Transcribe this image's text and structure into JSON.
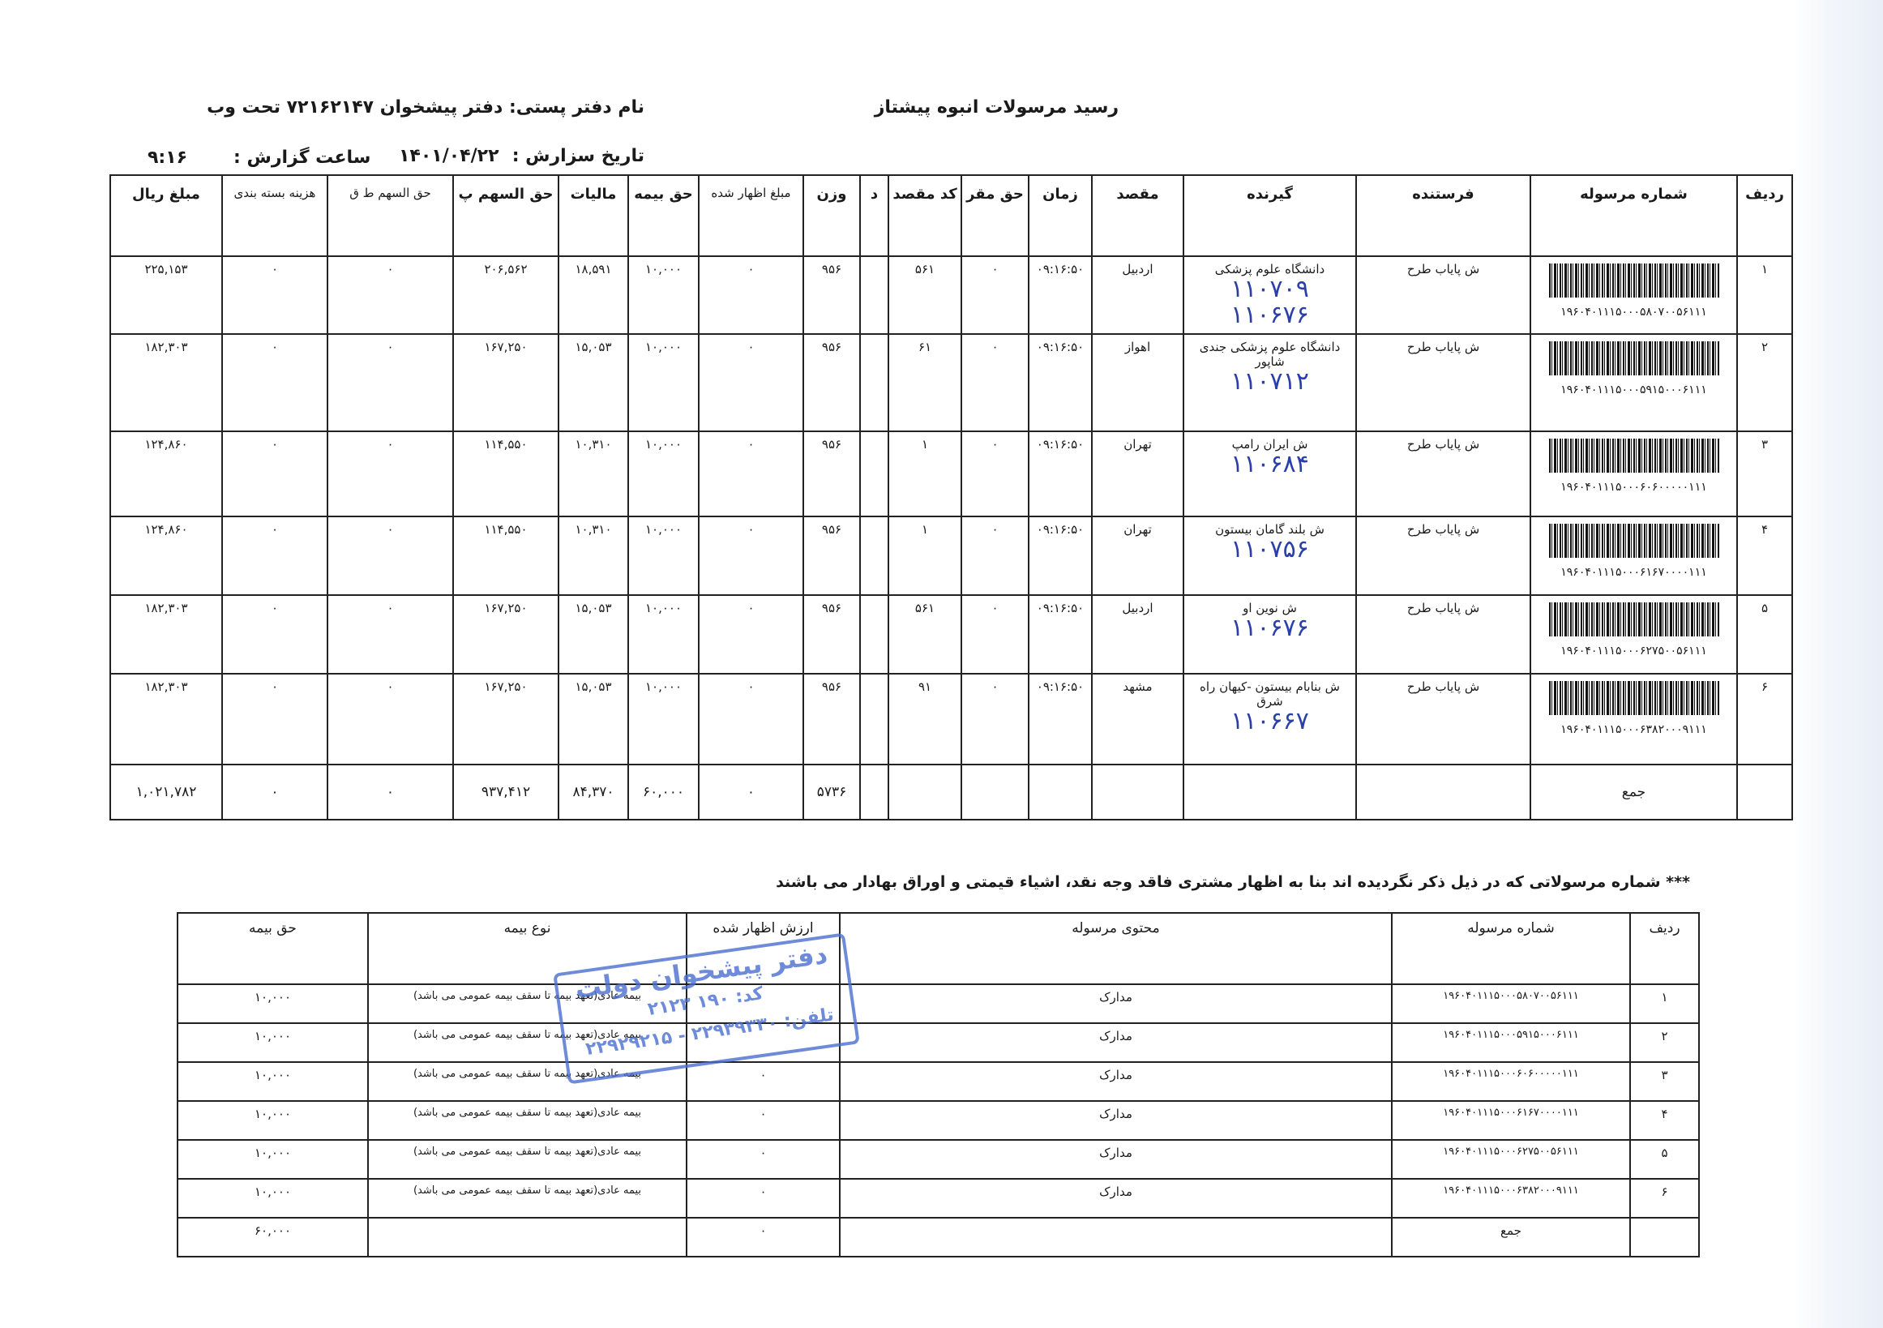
{
  "header": {
    "title": "رسید مرسولات انبوه  پیشتاز",
    "office": "نام دفتر پستی:  دفتر پیشخوان ۷۲۱۶۲۱۴۷ تحت وب",
    "date_label": "تاریخ سزارش :",
    "date_value": "۱۴۰۱/۰۴/۲۲",
    "time_label": "ساعت گزارش :",
    "time_value": "۹:۱۶"
  },
  "main_table": {
    "columns": [
      "ردیف",
      "شماره مرسوله",
      "فرستنده",
      "گیرنده",
      "مقصد",
      "زمان",
      "حق مقر",
      "کد مقصد",
      "د",
      "وزن",
      "مبلغ اظهار شده",
      "حق بیمه",
      "مالیات",
      "حق السهم پ",
      "حق السهم ط ق",
      "هزینه بسته بندی",
      "مبلغ ریال"
    ],
    "rows": [
      {
        "row": "۱",
        "parcel_no": "۱۹۶۰۴۰۱۱۱۵۰۰۰۵۸۰۷۰۰۵۶۱۱۱",
        "sender": "ش پایاب طرح",
        "recipient": "دانشگاه علوم پزشکی",
        "handwritten": [
          "۱۱۰۷۰۹",
          "۱۱۰۶۷۶"
        ],
        "destination": "اردبیل",
        "time": "۰۹:۱۶:۵۰",
        "haq_maqar": "۰",
        "dest_code": "۵۶۱",
        "d": "",
        "weight": "۹۵۶",
        "declared": "۰",
        "insurance": "۱۰,۰۰۰",
        "tax": "۱۸,۵۹۱",
        "share_p": "۲۰۶,۵۶۲",
        "share_tq": "۰",
        "packing": "۰",
        "amount": "۲۲۵,۱۵۳"
      },
      {
        "row": "۲",
        "parcel_no": "۱۹۶۰۴۰۱۱۱۵۰۰۰۵۹۱۵۰۰۰۶۱۱۱",
        "sender": "ش پایاب طرح",
        "recipient": "دانشگاه علوم پزشکی جندی شاپور",
        "handwritten": [
          "۱۱۰۷۱۲"
        ],
        "destination": "اهواز",
        "time": "۰۹:۱۶:۵۰",
        "haq_maqar": "۰",
        "dest_code": "۶۱",
        "d": "",
        "weight": "۹۵۶",
        "declared": "۰",
        "insurance": "۱۰,۰۰۰",
        "tax": "۱۵,۰۵۳",
        "share_p": "۱۶۷,۲۵۰",
        "share_tq": "۰",
        "packing": "۰",
        "amount": "۱۸۲,۳۰۳"
      },
      {
        "row": "۳",
        "parcel_no": "۱۹۶۰۴۰۱۱۱۵۰۰۰۶۰۶۰۰۰۰۰۱۱۱",
        "sender": "ش پایاب طرح",
        "recipient": "ش ایران رامپ",
        "handwritten": [
          "۱۱۰۶۸۴"
        ],
        "destination": "تهران",
        "time": "۰۹:۱۶:۵۰",
        "haq_maqar": "۰",
        "dest_code": "۱",
        "d": "",
        "weight": "۹۵۶",
        "declared": "۰",
        "insurance": "۱۰,۰۰۰",
        "tax": "۱۰,۳۱۰",
        "share_p": "۱۱۴,۵۵۰",
        "share_tq": "۰",
        "packing": "۰",
        "amount": "۱۲۴,۸۶۰"
      },
      {
        "row": "۴",
        "parcel_no": "۱۹۶۰۴۰۱۱۱۵۰۰۰۶۱۶۷۰۰۰۰۱۱۱",
        "sender": "ش پایاب طرح",
        "recipient": "ش بلند گامان بیستون",
        "handwritten": [
          "۱۱۰۷۵۶"
        ],
        "destination": "تهران",
        "time": "۰۹:۱۶:۵۰",
        "haq_maqar": "۰",
        "dest_code": "۱",
        "d": "",
        "weight": "۹۵۶",
        "declared": "۰",
        "insurance": "۱۰,۰۰۰",
        "tax": "۱۰,۳۱۰",
        "share_p": "۱۱۴,۵۵۰",
        "share_tq": "۰",
        "packing": "۰",
        "amount": "۱۲۴,۸۶۰"
      },
      {
        "row": "۵",
        "parcel_no": "۱۹۶۰۴۰۱۱۱۵۰۰۰۶۲۷۵۰۰۵۶۱۱۱",
        "sender": "ش پایاب طرح",
        "recipient": "ش نوین او",
        "handwritten": [
          "۱۱۰۶۷۶"
        ],
        "destination": "اردبیل",
        "time": "۰۹:۱۶:۵۰",
        "haq_maqar": "۰",
        "dest_code": "۵۶۱",
        "d": "",
        "weight": "۹۵۶",
        "declared": "۰",
        "insurance": "۱۰,۰۰۰",
        "tax": "۱۵,۰۵۳",
        "share_p": "۱۶۷,۲۵۰",
        "share_tq": "۰",
        "packing": "۰",
        "amount": "۱۸۲,۳۰۳"
      },
      {
        "row": "۶",
        "parcel_no": "۱۹۶۰۴۰۱۱۱۵۰۰۰۶۳۸۲۰۰۰۹۱۱۱",
        "sender": "ش پایاب طرح",
        "recipient": "ش بنابام بیستون -کیهان راه شرق",
        "handwritten": [
          "۱۱۰۶۶۷"
        ],
        "destination": "مشهد",
        "time": "۰۹:۱۶:۵۰",
        "haq_maqar": "۰",
        "dest_code": "۹۱",
        "d": "",
        "weight": "۹۵۶",
        "declared": "۰",
        "insurance": "۱۰,۰۰۰",
        "tax": "۱۵,۰۵۳",
        "share_p": "۱۶۷,۲۵۰",
        "share_tq": "۰",
        "packing": "۰",
        "amount": "۱۸۲,۳۰۳"
      }
    ],
    "total": {
      "label": "جمع",
      "weight": "۵۷۳۶",
      "declared": "۰",
      "insurance": "۶۰,۰۰۰",
      "tax": "۸۴,۳۷۰",
      "share_p": "۹۳۷,۴۱۲",
      "share_tq": "۰",
      "packing": "۰",
      "amount": "۱,۰۲۱,۷۸۲"
    }
  },
  "note": "*** شماره مرسولاتی که در ذیل ذکر نگردیده اند بنا به اظهار مشتری فاقد وجه نقد، اشیاء قیمتی و اوراق بهادار می باشند",
  "insurance_table": {
    "columns": [
      "ردیف",
      "شماره مرسوله",
      "محتوی مرسوله",
      "ارزش اظهار شده",
      "نوع بیمه",
      "حق بیمه"
    ],
    "rows": [
      {
        "row": "۱",
        "parcel_no": "۱۹۶۰۴۰۱۱۱۵۰۰۰۵۸۰۷۰۰۵۶۱۱۱",
        "content": "مدارک",
        "declared": "",
        "type": "بیمه عادی(تعهد بیمه تا سقف بیمه عمومی می باشد)",
        "fee": "۱۰,۰۰۰"
      },
      {
        "row": "۲",
        "parcel_no": "۱۹۶۰۴۰۱۱۱۵۰۰۰۵۹۱۵۰۰۰۶۱۱۱",
        "content": "مدارک",
        "declared": "",
        "type": "بیمه عادی(تعهد بیمه تا سقف بیمه عمومی می باشد)",
        "fee": "۱۰,۰۰۰"
      },
      {
        "row": "۳",
        "parcel_no": "۱۹۶۰۴۰۱۱۱۵۰۰۰۶۰۶۰۰۰۰۰۱۱۱",
        "content": "مدارک",
        "declared": "۰",
        "type": "بیمه عادی(تعهد بیمه تا سقف بیمه عمومی می باشد)",
        "fee": "۱۰,۰۰۰"
      },
      {
        "row": "۴",
        "parcel_no": "۱۹۶۰۴۰۱۱۱۵۰۰۰۶۱۶۷۰۰۰۰۱۱۱",
        "content": "مدارک",
        "declared": "۰",
        "type": "بیمه عادی(تعهد بیمه تا سقف بیمه عمومی می باشد)",
        "fee": "۱۰,۰۰۰"
      },
      {
        "row": "۵",
        "parcel_no": "۱۹۶۰۴۰۱۱۱۵۰۰۰۶۲۷۵۰۰۵۶۱۱۱",
        "content": "مدارک",
        "declared": "۰",
        "type": "بیمه عادی(تعهد بیمه تا سقف بیمه عمومی می باشد)",
        "fee": "۱۰,۰۰۰"
      },
      {
        "row": "۶",
        "parcel_no": "۱۹۶۰۴۰۱۱۱۵۰۰۰۶۳۸۲۰۰۰۹۱۱۱",
        "content": "مدارک",
        "declared": "۰",
        "type": "بیمه عادی(تعهد بیمه تا سقف بیمه عمومی می باشد)",
        "fee": "۱۰,۰۰۰"
      }
    ],
    "total": {
      "label": "جمع",
      "declared": "۰",
      "fee": "۶۰,۰۰۰"
    }
  },
  "stamp": {
    "line1": "دفتر پیشخوان دولت",
    "line2": "کد: ۱۹۰ ۲۱۲۳",
    "line3": "تلفن: ۲۲۹۳۹۳۳۰ - ۲۲۹۲۹۲۱۵",
    "color": "#4a6fd0"
  },
  "colors": {
    "handwriting": "#2b3fa8"
  }
}
